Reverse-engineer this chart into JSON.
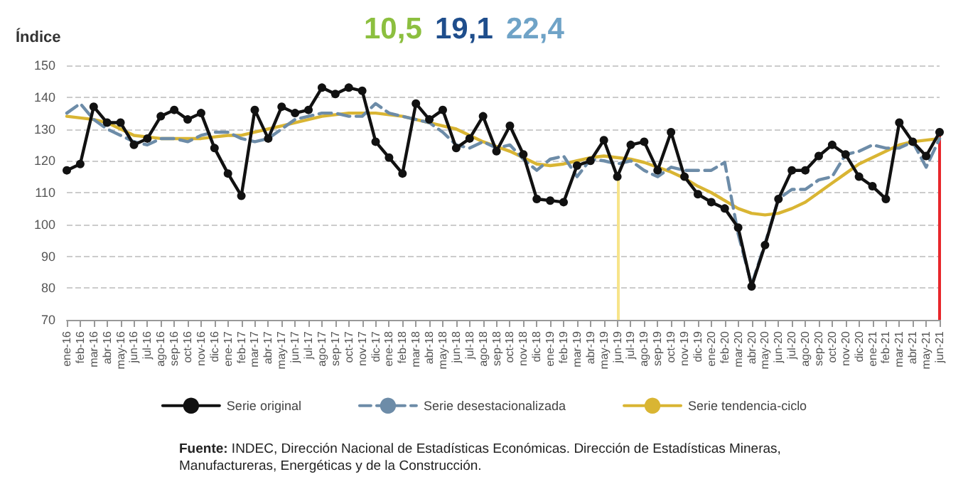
{
  "chart_data": {
    "type": "line",
    "ylabel": "Índice",
    "categories": [
      "ene-16",
      "feb-16",
      "mar-16",
      "abr-16",
      "may-16",
      "jun-16",
      "jul-16",
      "ago-16",
      "sep-16",
      "oct-16",
      "nov-16",
      "dic-16",
      "ene-17",
      "feb-17",
      "mar-17",
      "abr-17",
      "may-17",
      "jun-17",
      "jul-17",
      "ago-17",
      "sep-17",
      "oct-17",
      "nov-17",
      "dic-17",
      "ene-18",
      "feb-18",
      "mar-18",
      "abr-18",
      "may-18",
      "jun-18",
      "jul-18",
      "ago-18",
      "sep-18",
      "oct-18",
      "nov-18",
      "dic-18",
      "ene-19",
      "feb-19",
      "mar-19",
      "abr-19",
      "may-19",
      "jun-19",
      "jul-19",
      "ago-19",
      "sep-19",
      "oct-19",
      "nov-19",
      "dic-19",
      "ene-20",
      "feb-20",
      "mar-20",
      "abr-20",
      "may-20",
      "jun-20",
      "jul-20",
      "ago-20",
      "sep-20",
      "oct-20",
      "nov-20",
      "dic-20",
      "ene-21",
      "feb-21",
      "mar-21",
      "abr-21",
      "may-21",
      "jun-21"
    ],
    "series": [
      {
        "name": "Serie original",
        "color": "#111111",
        "marker": "circle",
        "line_style": "solid",
        "values": [
          117,
          119,
          137,
          132,
          132,
          125,
          127,
          134,
          136,
          133,
          135,
          124,
          116,
          109,
          136,
          127,
          137,
          135,
          136,
          143,
          141,
          143,
          142,
          126,
          121,
          116,
          138,
          133,
          136,
          124,
          127,
          134,
          123,
          131,
          122,
          108,
          107.5,
          107,
          118.5,
          120,
          126.5,
          115,
          125,
          126,
          117,
          129,
          115,
          109.5,
          107,
          105,
          99,
          80.5,
          93.5,
          108,
          117,
          117,
          121.5,
          125,
          122,
          115,
          112,
          108,
          132,
          126,
          121.5,
          129
        ]
      },
      {
        "name": "Serie desestacionalizada",
        "color": "#6d8ca8",
        "marker": "none",
        "line_style": "dashed",
        "values": [
          135,
          138,
          133,
          130,
          128,
          126,
          125,
          127,
          127,
          126,
          128,
          129,
          129,
          127,
          126,
          127,
          130,
          133,
          134,
          135,
          135,
          134,
          134,
          138,
          135,
          134,
          133,
          132,
          129,
          125,
          124,
          126,
          124,
          125,
          120.5,
          117,
          120.5,
          121.5,
          115,
          120.5,
          120,
          119,
          120,
          117,
          115,
          118,
          117,
          117,
          117,
          119.5,
          97,
          81,
          94,
          108,
          111,
          111,
          114,
          115,
          122,
          123,
          125,
          124,
          124,
          126,
          118,
          127
        ]
      },
      {
        "name": "Serie tendencia-ciclo",
        "color": "#d9b533",
        "marker": "none",
        "line_style": "solid",
        "values": [
          134,
          133.5,
          133,
          132,
          130,
          128,
          127.5,
          127,
          127,
          127,
          127,
          127.5,
          128,
          128,
          129,
          130,
          131,
          132,
          133,
          134,
          134.5,
          135,
          135,
          135,
          134.5,
          134,
          133,
          132,
          131,
          130,
          128,
          126,
          124.5,
          123,
          121,
          119,
          118.5,
          119,
          120,
          121,
          121.5,
          121,
          120.5,
          119.5,
          118,
          116.5,
          114.5,
          112,
          110,
          107.5,
          105,
          103.5,
          103,
          103.5,
          105,
          107,
          110,
          113,
          116,
          119,
          121,
          123,
          125,
          126,
          126.5,
          127
        ]
      }
    ],
    "ylim": [
      70,
      150
    ],
    "yticks": [
      70,
      80,
      90,
      100,
      110,
      120,
      130,
      140,
      150
    ],
    "grid": "y",
    "legend": "bottom",
    "ref_lines": [
      {
        "axis": "x",
        "value": "jun-19",
        "color": "#f7e48a"
      },
      {
        "axis": "x",
        "value": "jun-21",
        "color": "#e8262b"
      }
    ],
    "annotations": [
      "10,5",
      "19,1",
      "22,4",
      "Fuente: INDEC, Dirección Nacional de Estadísticas Económicas. Dirección de Estadísticas Mineras, Manufactureras, Energéticas y de la Construcción."
    ]
  }
}
